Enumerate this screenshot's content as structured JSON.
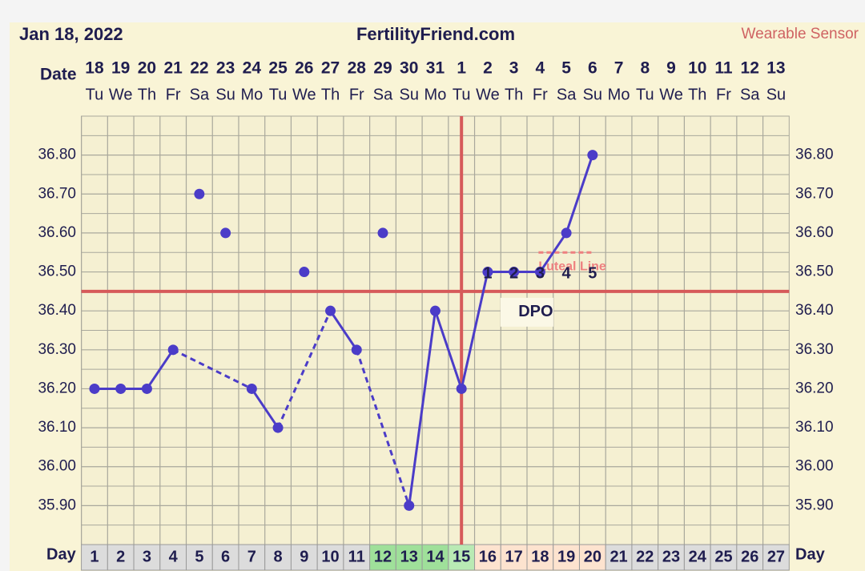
{
  "header": {
    "date": "Jan 18, 2022",
    "site": "FertilityFriend.com",
    "sensor": "Wearable Sensor"
  },
  "chart_data": {
    "type": "line",
    "date_label": "Date",
    "day_label": "Day",
    "x": [
      1,
      2,
      3,
      4,
      5,
      6,
      7,
      8,
      9,
      10,
      11,
      12,
      13,
      14,
      15,
      16,
      17,
      18,
      19,
      20,
      21,
      22,
      23,
      24,
      25,
      26,
      27
    ],
    "dates": [
      "18",
      "19",
      "20",
      "21",
      "22",
      "23",
      "24",
      "25",
      "26",
      "27",
      "28",
      "29",
      "30",
      "31",
      "1",
      "2",
      "3",
      "4",
      "5",
      "6",
      "7",
      "8",
      "9",
      "10",
      "11",
      "12",
      "13"
    ],
    "weekdays": [
      "Tu",
      "We",
      "Th",
      "Fr",
      "Sa",
      "Su",
      "Mo",
      "Tu",
      "We",
      "Th",
      "Fr",
      "Sa",
      "Su",
      "Mo",
      "Tu",
      "We",
      "Th",
      "Fr",
      "Sa",
      "Su",
      "Mo",
      "Tu",
      "We",
      "Th",
      "Fr",
      "Sa",
      "Su"
    ],
    "day_colors": [
      "#dcdcdc",
      "#dcdcdc",
      "#dcdcdc",
      "#dcdcdc",
      "#dcdcdc",
      "#dcdcdc",
      "#dcdcdc",
      "#dcdcdc",
      "#dcdcdc",
      "#dcdcdc",
      "#dcdcdc",
      "#9fe09a",
      "#9fe09a",
      "#9fe09a",
      "#b9eab4",
      "#fde3cf",
      "#fde3cf",
      "#fde3cf",
      "#fde3cf",
      "#fde3cf",
      "#dcdcdc",
      "#dcdcdc",
      "#dcdcdc",
      "#dcdcdc",
      "#dcdcdc",
      "#dcdcdc",
      "#dcdcdc"
    ],
    "series": [
      {
        "color": "#4b3cc8",
        "values": [
          36.2,
          36.2,
          36.2,
          36.3,
          36.7,
          36.6,
          36.2,
          36.1,
          36.5,
          36.4,
          36.3,
          36.6,
          35.9,
          36.4,
          36.2,
          36.5,
          36.5,
          36.5,
          36.6,
          36.8,
          null,
          null,
          null,
          null,
          null,
          null,
          null
        ]
      }
    ],
    "discarded_days": [
      5,
      6,
      9,
      12
    ],
    "ylim": [
      35.8,
      36.9
    ],
    "yticks": [
      {
        "value": 35.9,
        "label": "35.90"
      },
      {
        "value": 36.0,
        "label": "36.00"
      },
      {
        "value": 36.1,
        "label": "36.10"
      },
      {
        "value": 36.2,
        "label": "36.20"
      },
      {
        "value": 36.3,
        "label": "36.30"
      },
      {
        "value": 36.4,
        "label": "36.40"
      },
      {
        "value": 36.5,
        "label": "36.50"
      },
      {
        "value": 36.6,
        "label": "36.60"
      },
      {
        "value": 36.7,
        "label": "36.70"
      },
      {
        "value": 36.8,
        "label": "36.80"
      }
    ],
    "cover_line": 36.45,
    "ovulation_day": 15,
    "line_color": "#d65a5a",
    "dpo": [
      1,
      2,
      3,
      4,
      5
    ],
    "dpo_label": "DPO",
    "luteal_line": {
      "label": "Luteal Line",
      "value": 36.55,
      "color": "#ee8080"
    }
  }
}
